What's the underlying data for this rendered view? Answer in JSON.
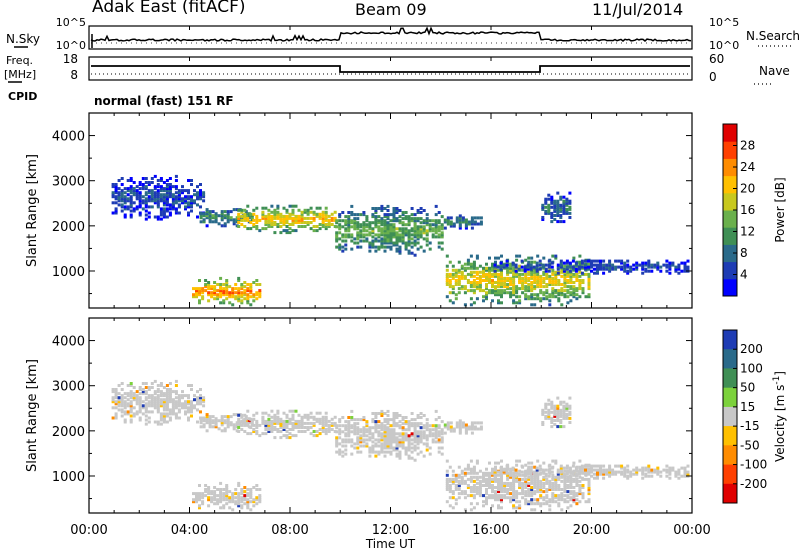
{
  "header": {
    "title": "Adak East (fitACF)",
    "beam": "Beam 09",
    "date": "11/Jul/2014"
  },
  "noise": {
    "left_label": "N.Sky",
    "right_label": "N.Search",
    "ticks_left": [
      "10^5",
      "10^0"
    ],
    "ticks_right": [
      "10^5",
      "10^0"
    ]
  },
  "freq": {
    "left_label_1": "Freq.",
    "left_label_2": "[MHz]",
    "right_label": "Nave",
    "ticks_left": [
      "18",
      "8"
    ],
    "ticks_right": [
      "60",
      "0"
    ]
  },
  "cpid": {
    "label": "CPID",
    "value": "normal (fast) 151 RF"
  },
  "chart_data": [
    {
      "type": "heatmap",
      "panel": "power",
      "xlabel": "",
      "ylabel": "Slant Range [km]",
      "x_ticks": [
        "00:00",
        "04:00",
        "08:00",
        "12:00",
        "16:00",
        "20:00",
        "00:00"
      ],
      "y_ticks": [
        1000,
        2000,
        3000,
        4000
      ],
      "xlim_hours": [
        0,
        24
      ],
      "ylim_km": [
        180,
        4500
      ],
      "colorbar": {
        "label": "Power [dB]",
        "ticks": [
          4,
          8,
          12,
          16,
          20,
          24,
          28
        ],
        "range": [
          0,
          32
        ],
        "colors": [
          "#0000ff",
          "#1e3cb4",
          "#2a6a8a",
          "#3f8f55",
          "#6ab04c",
          "#c8c81e",
          "#ffc000",
          "#ff8c00",
          "#ff4000",
          "#e00000"
        ]
      },
      "features": [
        {
          "t_start": 0.9,
          "t_end": 4.6,
          "range_lo": 2150,
          "range_hi": 3100,
          "power_db": 6
        },
        {
          "t_start": 4.4,
          "t_end": 6.5,
          "range_lo": 2000,
          "range_hi": 2400,
          "power_db": 12
        },
        {
          "t_start": 5.9,
          "t_end": 9.8,
          "range_lo": 1850,
          "range_hi": 2450,
          "power_db": 22
        },
        {
          "t_start": 4.1,
          "t_end": 6.8,
          "range_lo": 250,
          "range_hi": 850,
          "power_db": 25
        },
        {
          "t_start": 9.8,
          "t_end": 14.1,
          "range_lo": 1350,
          "range_hi": 2450,
          "power_db": 14
        },
        {
          "t_start": 14.0,
          "t_end": 15.6,
          "range_lo": 1950,
          "range_hi": 2250,
          "power_db": 10
        },
        {
          "t_start": 14.2,
          "t_end": 19.9,
          "range_lo": 250,
          "range_hi": 1350,
          "power_db": 20
        },
        {
          "t_start": 16.1,
          "t_end": 23.9,
          "range_lo": 950,
          "range_hi": 1250,
          "power_db": 6
        },
        {
          "t_start": 18.0,
          "t_end": 19.2,
          "range_lo": 2050,
          "range_hi": 2750,
          "power_db": 9
        }
      ]
    },
    {
      "type": "heatmap",
      "panel": "velocity",
      "xlabel": "Time UT",
      "ylabel": "Slant Range [km]",
      "x_ticks": [
        "00:00",
        "04:00",
        "08:00",
        "12:00",
        "16:00",
        "20:00",
        "00:00"
      ],
      "y_ticks": [
        1000,
        2000,
        3000,
        4000
      ],
      "xlim_hours": [
        0,
        24
      ],
      "ylim_km": [
        180,
        4500
      ],
      "colorbar": {
        "label": "Velocity [m s^-1]",
        "tick_labels": [
          "200",
          "100",
          "50",
          "15",
          "-15",
          "-50",
          "-100",
          "-200"
        ],
        "colors": [
          "#1e3cb4",
          "#2a6a8a",
          "#3f8f55",
          "#7cd23c",
          "#c8c8c8",
          "#ffc000",
          "#ff8c00",
          "#ff4000",
          "#e00000"
        ]
      },
      "note": "Same scatter regions as the power panel, mostly ground scatter (grey, -15 to 15 m/s)."
    }
  ]
}
